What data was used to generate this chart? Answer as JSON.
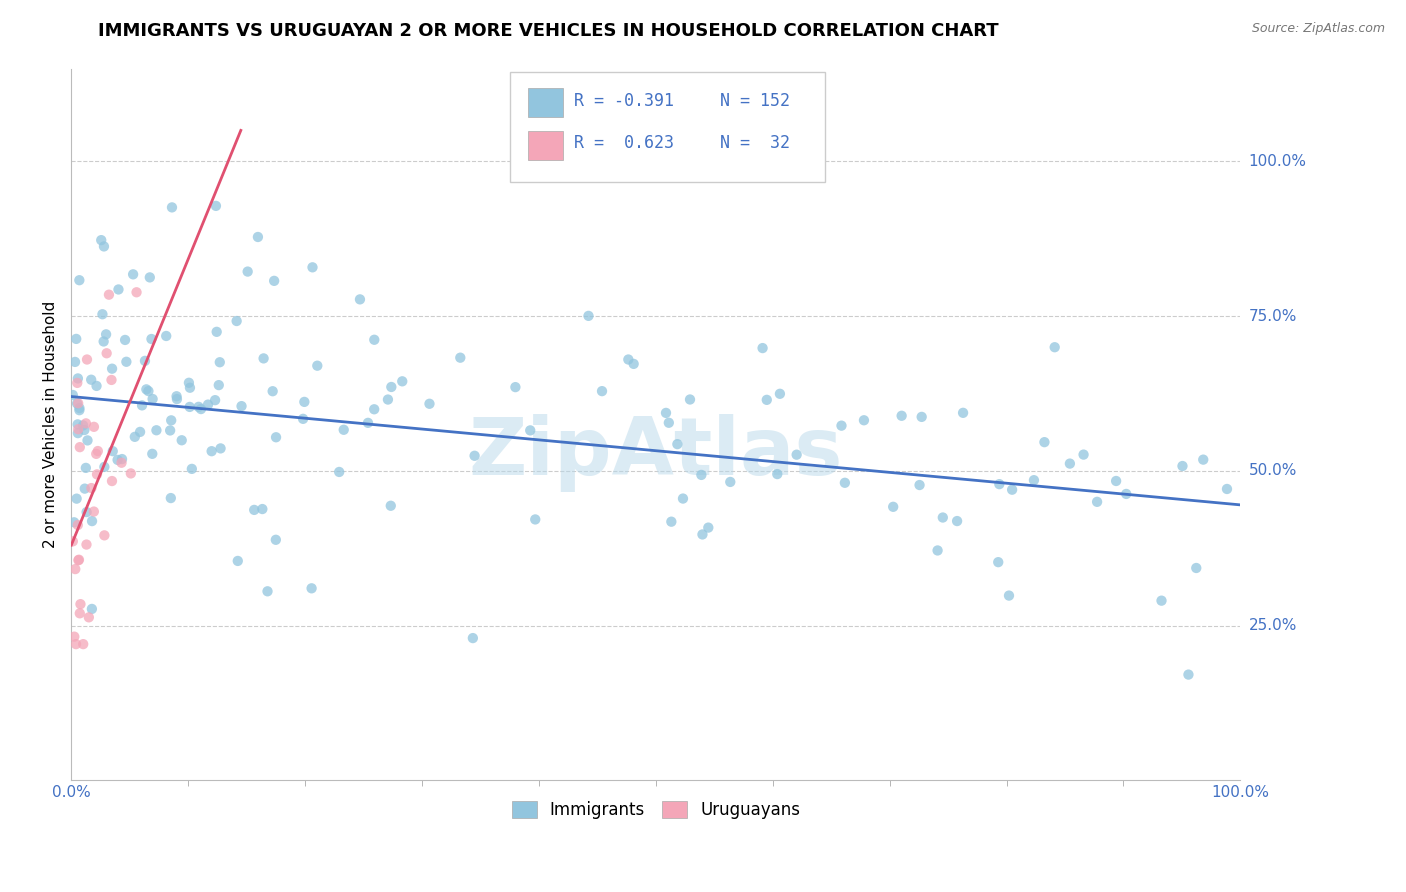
{
  "title": "IMMIGRANTS VS URUGUAYAN 2 OR MORE VEHICLES IN HOUSEHOLD CORRELATION CHART",
  "source_text": "Source: ZipAtlas.com",
  "ylabel": "2 or more Vehicles in Household",
  "xlim": [
    0.0,
    1.0
  ],
  "ylim": [
    0.0,
    1.15
  ],
  "x_tick_labels_pos": [
    0.0,
    1.0
  ],
  "x_tick_labels": [
    "0.0%",
    "100.0%"
  ],
  "y_tick_positions": [
    0.25,
    0.5,
    0.75,
    1.0
  ],
  "y_tick_labels": [
    "25.0%",
    "50.0%",
    "75.0%",
    "100.0%"
  ],
  "blue_color": "#92c5de",
  "pink_color": "#f4a6b8",
  "blue_line_color": "#4472c4",
  "pink_line_color": "#e05070",
  "tick_color": "#4472c4",
  "grid_color": "#cccccc",
  "grid_linestyle": "--",
  "watermark_text": "ZipAtlas",
  "watermark_color": "#b8d8ea",
  "watermark_alpha": 0.5,
  "blue_line_x": [
    0.0,
    1.0
  ],
  "blue_line_y": [
    0.62,
    0.445
  ],
  "pink_line_x": [
    0.0,
    0.145
  ],
  "pink_line_y": [
    0.38,
    1.05
  ],
  "legend_items": [
    {
      "color": "#92c5de",
      "text1": "R = -0.391",
      "text2": "N = 152"
    },
    {
      "color": "#f4a6b8",
      "text1": "R =  0.623",
      "text2": "N =  32"
    }
  ]
}
